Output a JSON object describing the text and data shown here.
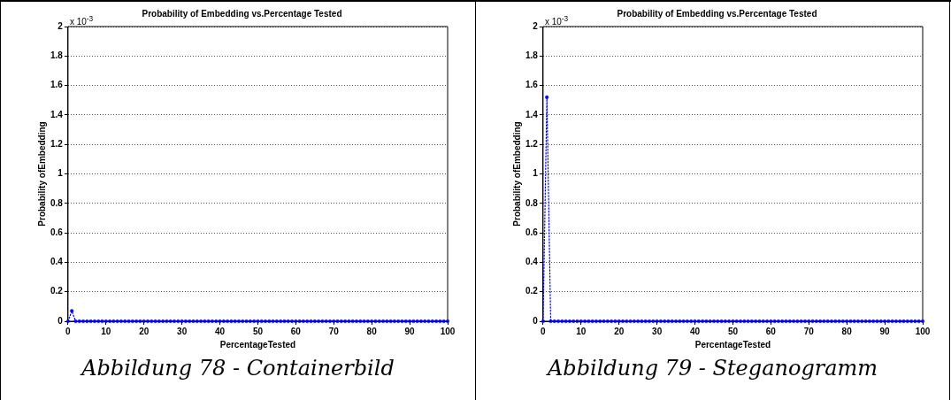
{
  "chart_data": [
    {
      "type": "line",
      "title": "Probability of Embedding vs.Percentage Tested",
      "xlabel": "PercentageTested",
      "ylabel": "Probability ofEmbedding",
      "annotations": [
        "x 10$^{-3}$",
        "Abbildung 78 - Containerbild"
      ],
      "xlim": [
        0,
        100
      ],
      "xticks": [
        0,
        10,
        20,
        30,
        40,
        50,
        60,
        70,
        80,
        90,
        100
      ],
      "ylim": [
        0,
        2
      ],
      "yticks": [
        0,
        0.2,
        0.4,
        0.6,
        0.8,
        1,
        1.2,
        1.4,
        1.6,
        1.8,
        2
      ],
      "grid": "y",
      "marker": "circle",
      "line_style": "dotted",
      "series": [
        {
          "color": "#0000ff",
          "x": [
            0,
            1,
            2,
            3,
            4,
            5,
            6,
            7,
            8,
            9,
            10,
            11,
            12,
            13,
            14,
            15,
            16,
            17,
            18,
            19,
            20,
            21,
            22,
            23,
            24,
            25,
            26,
            27,
            28,
            29,
            30,
            31,
            32,
            33,
            34,
            35,
            36,
            37,
            38,
            39,
            40,
            41,
            42,
            43,
            44,
            45,
            46,
            47,
            48,
            49,
            50,
            51,
            52,
            53,
            54,
            55,
            56,
            57,
            58,
            59,
            60,
            61,
            62,
            63,
            64,
            65,
            66,
            67,
            68,
            69,
            70,
            71,
            72,
            73,
            74,
            75,
            76,
            77,
            78,
            79,
            80,
            81,
            82,
            83,
            84,
            85,
            86,
            87,
            88,
            89,
            90,
            91,
            92,
            93,
            94,
            95,
            96,
            97,
            98,
            99,
            100
          ],
          "values": [
            0,
            0.07,
            0,
            0,
            0,
            0,
            0,
            0,
            0,
            0,
            0,
            0,
            0,
            0,
            0,
            0,
            0,
            0,
            0,
            0,
            0,
            0,
            0,
            0,
            0,
            0,
            0,
            0,
            0,
            0,
            0,
            0,
            0,
            0,
            0,
            0,
            0,
            0,
            0,
            0,
            0,
            0,
            0,
            0,
            0,
            0,
            0,
            0,
            0,
            0,
            0,
            0,
            0,
            0,
            0,
            0,
            0,
            0,
            0,
            0,
            0,
            0,
            0,
            0,
            0,
            0,
            0,
            0,
            0,
            0,
            0,
            0,
            0,
            0,
            0,
            0,
            0,
            0,
            0,
            0,
            0,
            0,
            0,
            0,
            0,
            0,
            0,
            0,
            0,
            0,
            0,
            0,
            0,
            0,
            0,
            0,
            0,
            0,
            0,
            0,
            0
          ]
        }
      ]
    },
    {
      "type": "line",
      "title": "Probability of Embedding vs.Percentage Tested",
      "xlabel": "PercentageTested",
      "ylabel": "Probability ofEmbedding",
      "annotations": [
        "x 10$^{-3}$",
        "Abbildung 79 - Steganogramm"
      ],
      "xlim": [
        0,
        100
      ],
      "xticks": [
        0,
        10,
        20,
        30,
        40,
        50,
        60,
        70,
        80,
        90,
        100
      ],
      "ylim": [
        0,
        2
      ],
      "yticks": [
        0,
        0.2,
        0.4,
        0.6,
        0.8,
        1,
        1.2,
        1.4,
        1.6,
        1.8,
        2
      ],
      "grid": "y",
      "marker": "circle",
      "line_style": "dotted",
      "series": [
        {
          "color": "#0000ff",
          "x": [
            0,
            1,
            2,
            3,
            4,
            5,
            6,
            7,
            8,
            9,
            10,
            11,
            12,
            13,
            14,
            15,
            16,
            17,
            18,
            19,
            20,
            21,
            22,
            23,
            24,
            25,
            26,
            27,
            28,
            29,
            30,
            31,
            32,
            33,
            34,
            35,
            36,
            37,
            38,
            39,
            40,
            41,
            42,
            43,
            44,
            45,
            46,
            47,
            48,
            49,
            50,
            51,
            52,
            53,
            54,
            55,
            56,
            57,
            58,
            59,
            60,
            61,
            62,
            63,
            64,
            65,
            66,
            67,
            68,
            69,
            70,
            71,
            72,
            73,
            74,
            75,
            76,
            77,
            78,
            79,
            80,
            81,
            82,
            83,
            84,
            85,
            86,
            87,
            88,
            89,
            90,
            91,
            92,
            93,
            94,
            95,
            96,
            97,
            98,
            99,
            100
          ],
          "values": [
            0,
            1.52,
            0,
            0,
            0,
            0,
            0,
            0,
            0,
            0,
            0,
            0,
            0,
            0,
            0,
            0,
            0,
            0,
            0,
            0,
            0,
            0,
            0,
            0,
            0,
            0,
            0,
            0,
            0,
            0,
            0,
            0,
            0,
            0,
            0,
            0,
            0,
            0,
            0,
            0,
            0,
            0,
            0,
            0,
            0,
            0,
            0,
            0,
            0,
            0,
            0,
            0,
            0,
            0,
            0,
            0,
            0,
            0,
            0,
            0,
            0,
            0,
            0,
            0,
            0,
            0,
            0,
            0,
            0,
            0,
            0,
            0,
            0,
            0,
            0,
            0,
            0,
            0,
            0,
            0,
            0,
            0,
            0,
            0,
            0,
            0,
            0,
            0,
            0,
            0,
            0,
            0,
            0,
            0,
            0,
            0,
            0,
            0,
            0,
            0,
            0
          ]
        }
      ]
    }
  ]
}
